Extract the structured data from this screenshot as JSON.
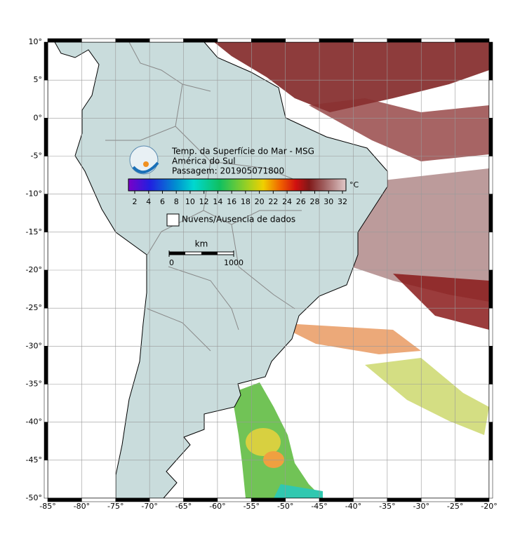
{
  "title_lines": [
    "Temp. da Superfície do Mar - MSG",
    "América do Sul",
    "Passagem: 201905071800"
  ],
  "colorbar": {
    "ticks": [
      2,
      4,
      6,
      8,
      10,
      12,
      14,
      16,
      18,
      20,
      22,
      24,
      26,
      28,
      30,
      32
    ],
    "unit": "°C"
  },
  "legend": {
    "label": "Nuvens/Ausencia de dados"
  },
  "scale_bar": {
    "unit": "km",
    "ticks": [
      0,
      1000
    ]
  },
  "map": {
    "lon_ticks": [
      {
        "value": -85,
        "label": "-85°"
      },
      {
        "value": -80,
        "label": "-80°"
      },
      {
        "value": -75,
        "label": "-75°"
      },
      {
        "value": -70,
        "label": "-70°"
      },
      {
        "value": -65,
        "label": "-65°"
      },
      {
        "value": -60,
        "label": "-60°"
      },
      {
        "value": -55,
        "label": "-55°"
      },
      {
        "value": -50,
        "label": "-50°"
      },
      {
        "value": -45,
        "label": "-45°"
      },
      {
        "value": -40,
        "label": "-40°"
      },
      {
        "value": -35,
        "label": "-35°"
      },
      {
        "value": -30,
        "label": "-30°"
      },
      {
        "value": -25,
        "label": "-25°"
      },
      {
        "value": -20,
        "label": "-20°"
      }
    ],
    "lat_ticks": [
      {
        "value": 10,
        "label": "10°"
      },
      {
        "value": 5,
        "label": "5°"
      },
      {
        "value": 0,
        "label": "0°"
      },
      {
        "value": -5,
        "label": "-5°"
      },
      {
        "value": -10,
        "label": "-10°"
      },
      {
        "value": -15,
        "label": "-15°"
      },
      {
        "value": -20,
        "label": "-20°"
      },
      {
        "value": -25,
        "label": "-25°"
      },
      {
        "value": -30,
        "label": "-30°"
      },
      {
        "value": -35,
        "label": "-35°"
      },
      {
        "value": -40,
        "label": "-40°"
      },
      {
        "value": -45,
        "label": "-45°"
      },
      {
        "value": -50,
        "label": "-50°"
      }
    ]
  }
}
